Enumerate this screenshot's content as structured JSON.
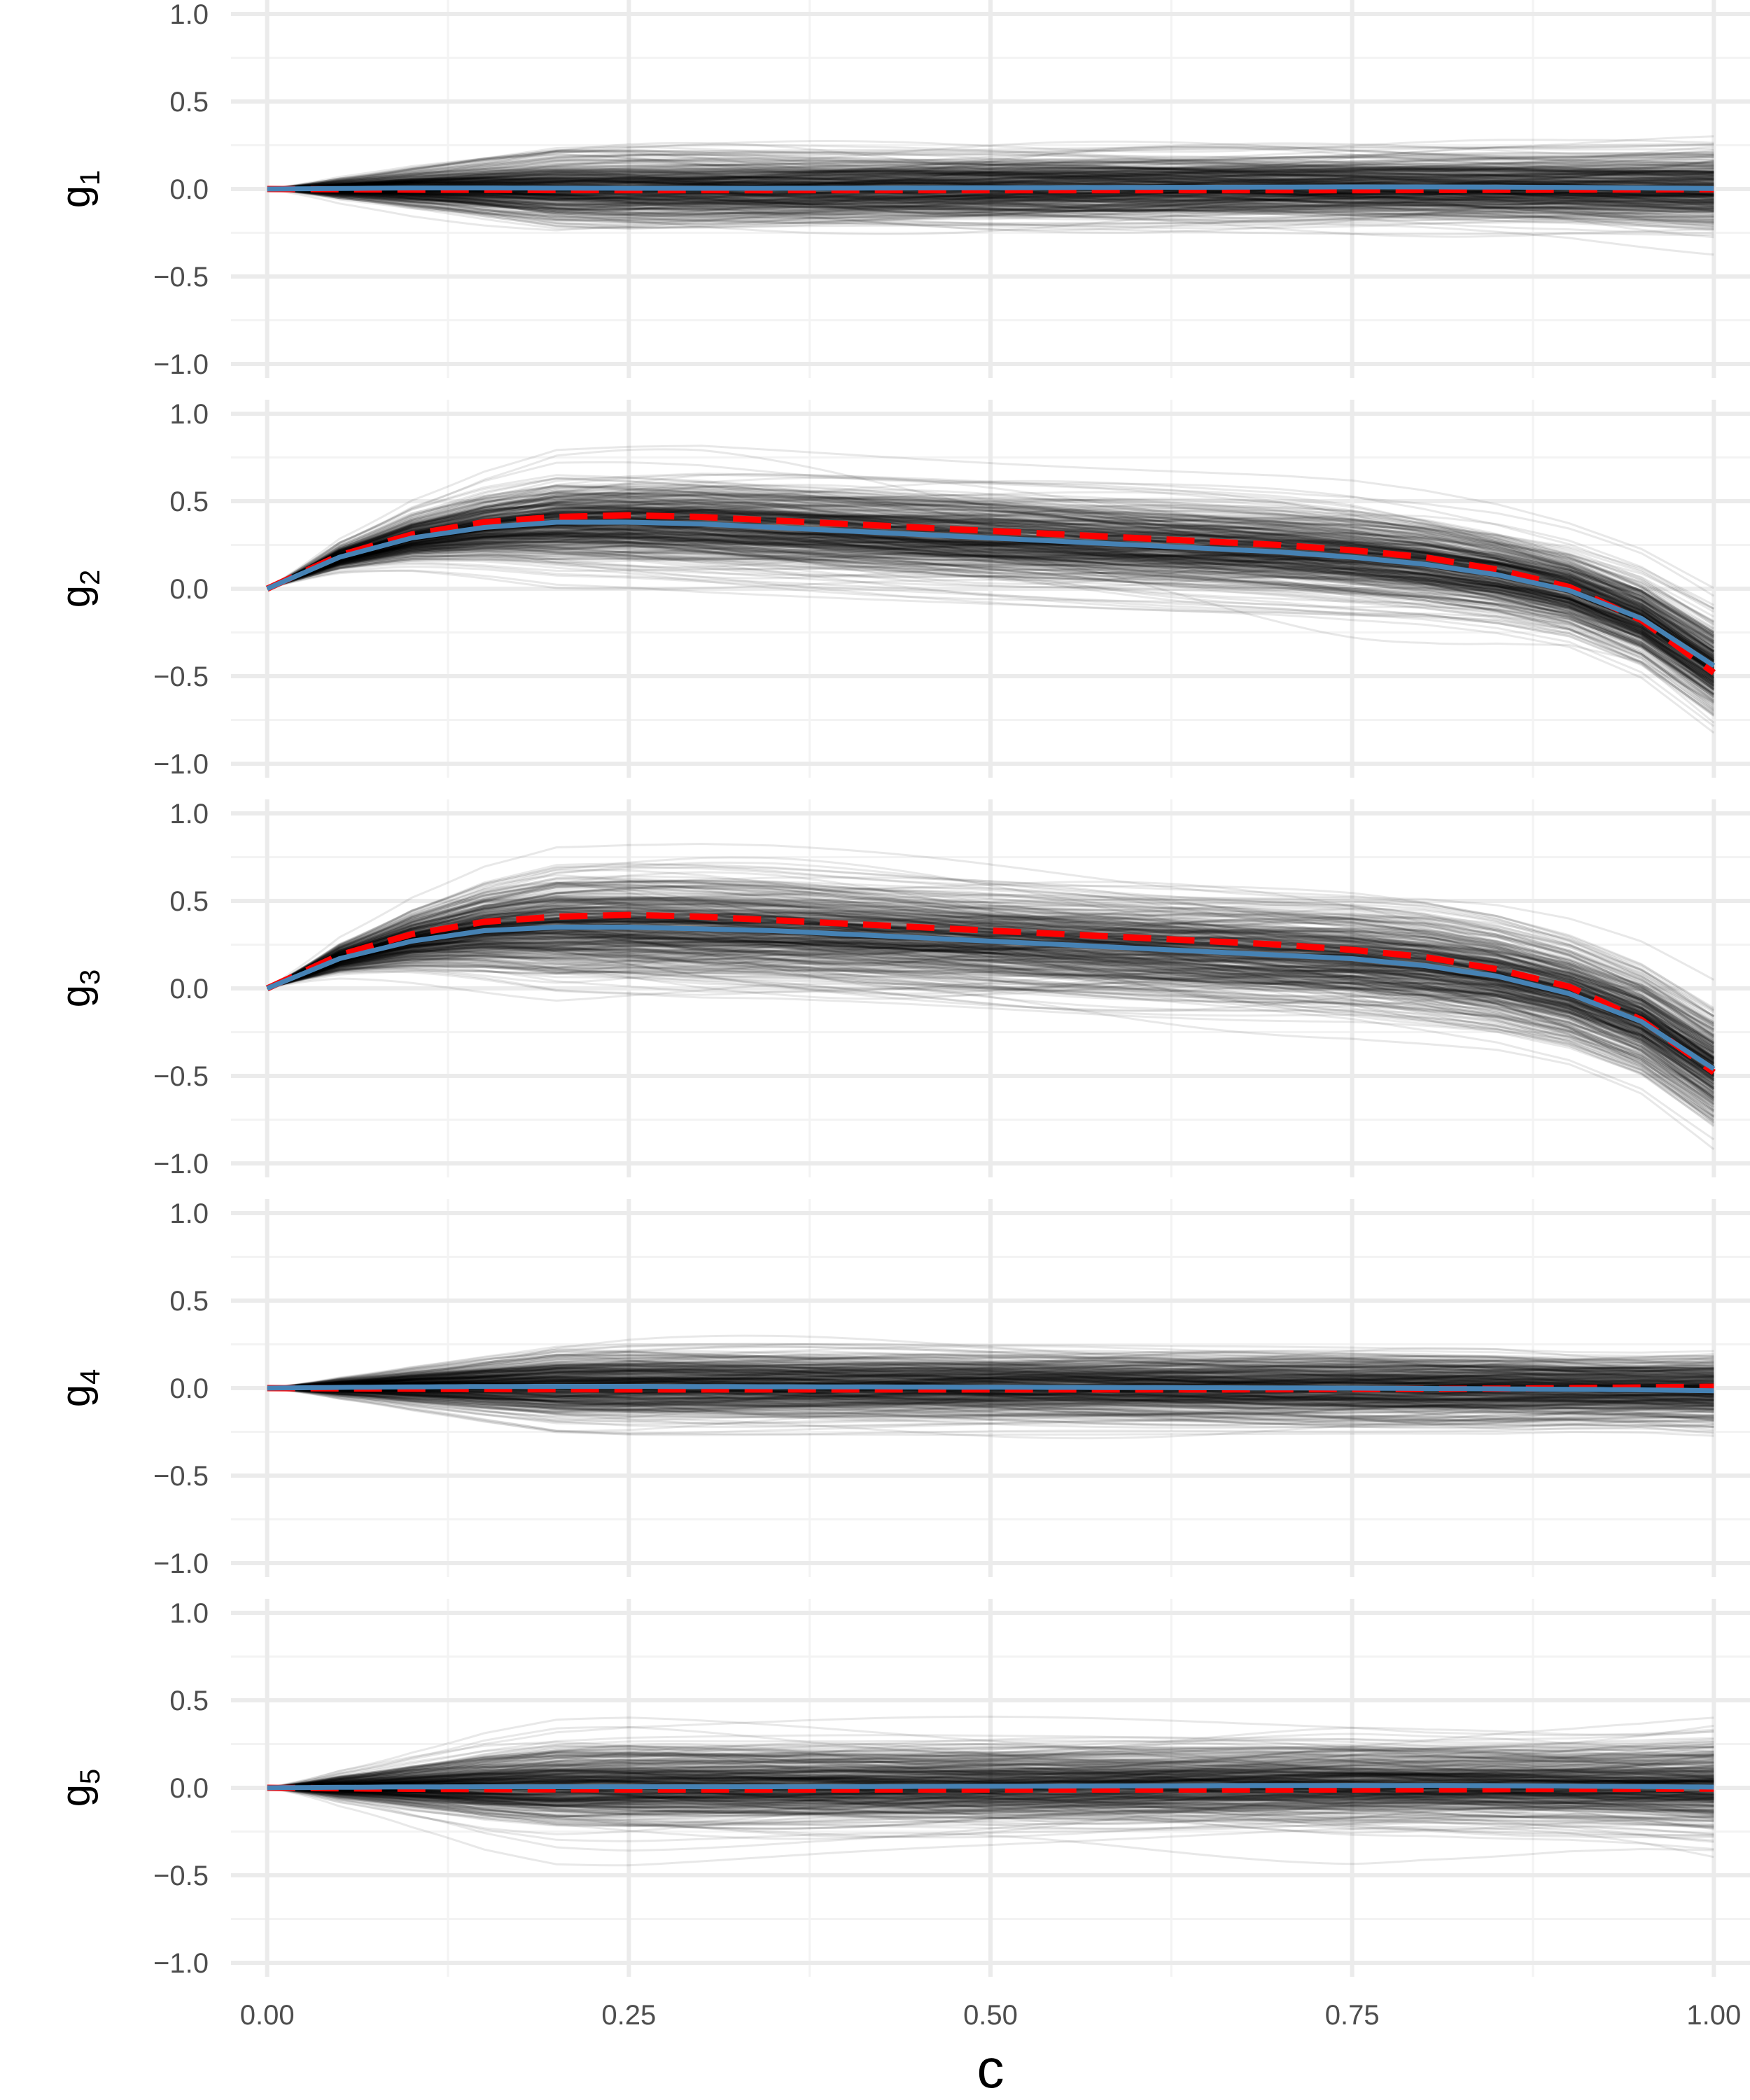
{
  "chart_data": {
    "type": "line",
    "xlabel": "c",
    "x_ticks": [
      "0.00",
      "0.25",
      "0.50",
      "0.75",
      "1.00"
    ],
    "x_tick_values": [
      0,
      0.25,
      0.5,
      0.75,
      1.0
    ],
    "xlim": [
      -0.025,
      1.025
    ],
    "y_ticks": [
      "1.0",
      "0.5",
      "0.0",
      "−0.5",
      "−1.0"
    ],
    "y_tick_values": [
      1.0,
      0.5,
      0.0,
      -0.5,
      -1.0
    ],
    "ylim": [
      -1.08,
      1.08
    ],
    "grid": true,
    "colors": {
      "samples": "#000000",
      "dashed_line": "#ff0000",
      "solid_line": "#4682b4",
      "grid_major": "#ebebeb",
      "grid_minor": "#f3f3f3"
    },
    "sample_curve_count": 400,
    "x": [
      0,
      0.05,
      0.1,
      0.15,
      0.2,
      0.25,
      0.3,
      0.35,
      0.4,
      0.45,
      0.5,
      0.55,
      0.6,
      0.65,
      0.7,
      0.75,
      0.8,
      0.85,
      0.9,
      0.95,
      1.0
    ],
    "panels": [
      {
        "label": "g",
        "subscript": "1",
        "series": [
          {
            "style": "dashed",
            "values": [
              0,
              -0.002,
              -0.004,
              -0.005,
              -0.006,
              -0.007,
              -0.007,
              -0.007,
              -0.007,
              -0.007,
              -0.007,
              -0.007,
              -0.007,
              -0.007,
              -0.007,
              -0.007,
              -0.006,
              -0.005,
              -0.004,
              -0.003,
              -0.002
            ]
          },
          {
            "style": "solid",
            "values": [
              0,
              0.003,
              0.006,
              0.006,
              0.005,
              0.004,
              0.004,
              0.004,
              0.005,
              0.006,
              0.007,
              0.008,
              0.009,
              0.01,
              0.011,
              0.012,
              0.012,
              0.011,
              0.009,
              0.006,
              0.003
            ]
          }
        ],
        "band_halfwidth": [
          0,
          0.09,
          0.14,
          0.17,
          0.19,
          0.2,
          0.2,
          0.2,
          0.2,
          0.2,
          0.2,
          0.2,
          0.2,
          0.2,
          0.2,
          0.2,
          0.2,
          0.2,
          0.2,
          0.21,
          0.22
        ]
      },
      {
        "label": "g",
        "subscript": "2",
        "series": [
          {
            "style": "dashed",
            "values": [
              0,
              0.19,
              0.31,
              0.38,
              0.41,
              0.42,
              0.41,
              0.39,
              0.37,
              0.35,
              0.33,
              0.31,
              0.29,
              0.27,
              0.25,
              0.22,
              0.18,
              0.11,
              0.01,
              -0.18,
              -0.48
            ]
          },
          {
            "style": "solid",
            "values": [
              0,
              0.18,
              0.29,
              0.35,
              0.38,
              0.38,
              0.37,
              0.35,
              0.33,
              0.31,
              0.29,
              0.27,
              0.25,
              0.23,
              0.21,
              0.18,
              0.14,
              0.08,
              -0.01,
              -0.17,
              -0.44
            ]
          }
        ],
        "band_halfwidth": [
          0,
          0.12,
          0.19,
          0.23,
          0.25,
          0.26,
          0.27,
          0.27,
          0.27,
          0.27,
          0.27,
          0.27,
          0.27,
          0.27,
          0.27,
          0.27,
          0.26,
          0.25,
          0.24,
          0.25,
          0.28
        ]
      },
      {
        "label": "g",
        "subscript": "3",
        "series": [
          {
            "style": "dashed",
            "values": [
              0,
              0.19,
              0.31,
              0.38,
              0.41,
              0.42,
              0.41,
              0.39,
              0.37,
              0.35,
              0.33,
              0.31,
              0.29,
              0.27,
              0.25,
              0.22,
              0.18,
              0.11,
              0.01,
              -0.18,
              -0.48
            ]
          },
          {
            "style": "solid",
            "values": [
              0,
              0.17,
              0.27,
              0.33,
              0.35,
              0.35,
              0.34,
              0.33,
              0.31,
              0.29,
              0.27,
              0.25,
              0.23,
              0.21,
              0.19,
              0.17,
              0.13,
              0.07,
              -0.03,
              -0.19,
              -0.46
            ]
          }
        ],
        "band_halfwidth": [
          0,
          0.13,
          0.21,
          0.26,
          0.28,
          0.29,
          0.3,
          0.3,
          0.3,
          0.3,
          0.3,
          0.3,
          0.3,
          0.3,
          0.3,
          0.3,
          0.3,
          0.29,
          0.28,
          0.28,
          0.3
        ]
      },
      {
        "label": "g",
        "subscript": "4",
        "series": [
          {
            "style": "dashed",
            "values": [
              0,
              -0.002,
              -0.004,
              -0.006,
              -0.007,
              -0.008,
              -0.008,
              -0.008,
              -0.008,
              -0.008,
              -0.008,
              -0.008,
              -0.008,
              -0.008,
              -0.007,
              -0.006,
              -0.005,
              -0.003,
              0.0,
              0.004,
              0.008
            ]
          },
          {
            "style": "solid",
            "values": [
              0,
              0.004,
              0.007,
              0.009,
              0.01,
              0.01,
              0.009,
              0.008,
              0.007,
              0.006,
              0.005,
              0.004,
              0.003,
              0.002,
              0.001,
              0.0,
              -0.002,
              -0.004,
              -0.007,
              -0.01,
              -0.015
            ]
          }
        ],
        "band_halfwidth": [
          0,
          0.09,
          0.14,
          0.17,
          0.19,
          0.2,
          0.2,
          0.2,
          0.2,
          0.2,
          0.2,
          0.2,
          0.2,
          0.2,
          0.2,
          0.2,
          0.2,
          0.2,
          0.19,
          0.19,
          0.2
        ]
      },
      {
        "label": "g",
        "subscript": "5",
        "series": [
          {
            "style": "dashed",
            "values": [
              0,
              -0.003,
              -0.006,
              -0.008,
              -0.009,
              -0.01,
              -0.01,
              -0.01,
              -0.01,
              -0.01,
              -0.01,
              -0.01,
              -0.01,
              -0.01,
              -0.01,
              -0.01,
              -0.009,
              -0.008,
              -0.007,
              -0.006,
              -0.005
            ]
          },
          {
            "style": "solid",
            "values": [
              0,
              0.003,
              0.005,
              0.006,
              0.006,
              0.006,
              0.006,
              0.006,
              0.007,
              0.008,
              0.009,
              0.01,
              0.011,
              0.012,
              0.013,
              0.013,
              0.013,
              0.012,
              0.01,
              0.007,
              0.004
            ]
          }
        ],
        "band_halfwidth": [
          0,
          0.11,
          0.17,
          0.21,
          0.22,
          0.23,
          0.23,
          0.23,
          0.23,
          0.23,
          0.23,
          0.23,
          0.23,
          0.23,
          0.23,
          0.23,
          0.22,
          0.22,
          0.22,
          0.23,
          0.25
        ]
      }
    ]
  }
}
